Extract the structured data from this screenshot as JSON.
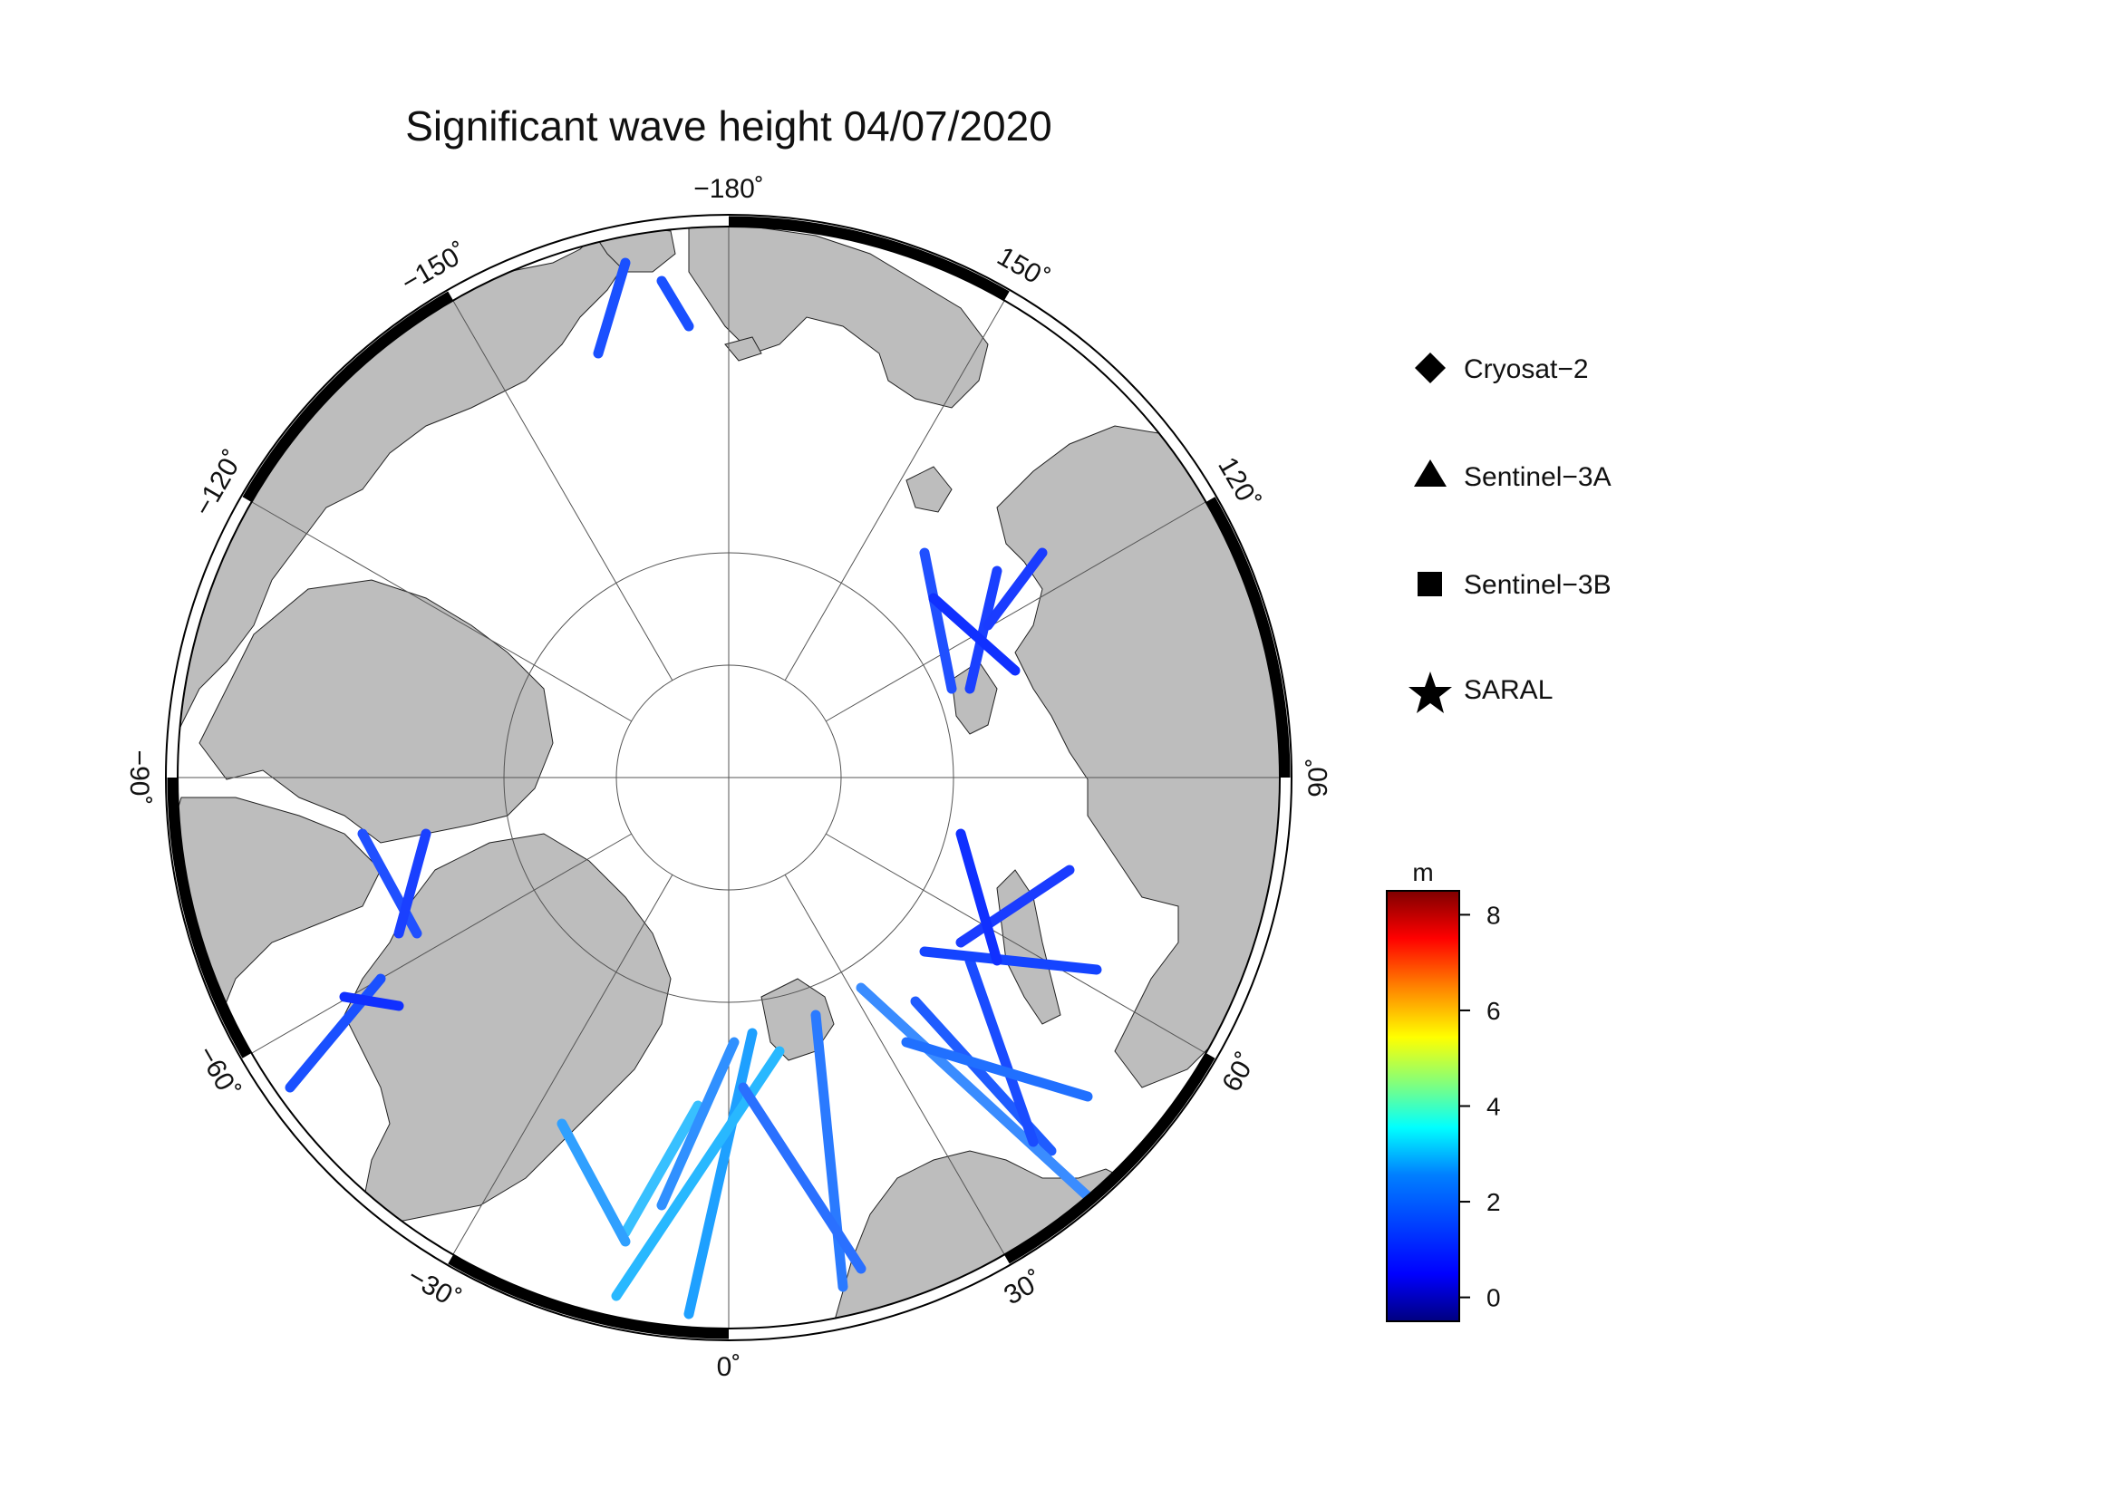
{
  "title": "Significant wave height 04/07/2020",
  "colors": {
    "land": "#bdbdbd",
    "ocean": "#ffffff",
    "frame": "#000000",
    "graticule": "#555555"
  },
  "longitude_labels": [
    {
      "deg": -180,
      "text": "−180˚"
    },
    {
      "deg": 150,
      "text": "150˚"
    },
    {
      "deg": 120,
      "text": "120˚"
    },
    {
      "deg": 90,
      "text": "90˚"
    },
    {
      "deg": 60,
      "text": "60˚"
    },
    {
      "deg": 30,
      "text": "30˚"
    },
    {
      "deg": 0,
      "text": "0˚"
    },
    {
      "deg": -30,
      "text": "−30˚"
    },
    {
      "deg": -60,
      "text": "−60˚"
    },
    {
      "deg": -90,
      "text": "−90˚"
    },
    {
      "deg": -120,
      "text": "−120˚"
    },
    {
      "deg": -150,
      "text": "−150˚"
    }
  ],
  "legend": [
    {
      "label": "Cryosat−2",
      "marker": "diamond-icon"
    },
    {
      "label": "Sentinel−3A",
      "marker": "triangle-icon"
    },
    {
      "label": "Sentinel−3B",
      "marker": "square-icon"
    },
    {
      "label": "SARAL",
      "marker": "star-icon"
    }
  ],
  "colorbar": {
    "unit": "m",
    "ticks": [
      8,
      6,
      4,
      2,
      0
    ],
    "range": [
      -0.5,
      8.5
    ],
    "stops": [
      "#00007f",
      "#0000ff",
      "#007fff",
      "#00ffff",
      "#7fff7f",
      "#ffff00",
      "#ff7f00",
      "#ff0000",
      "#7f0000"
    ]
  }
}
